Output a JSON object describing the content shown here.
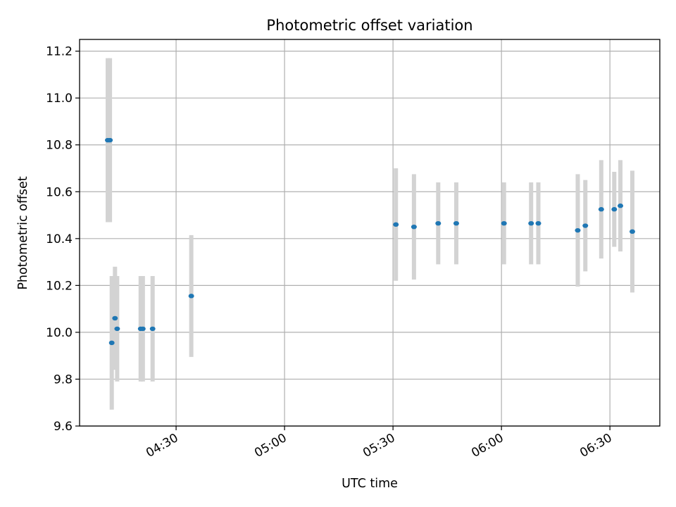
{
  "chart_data": {
    "type": "scatter",
    "title": "Photometric offset variation",
    "xlabel": "UTC time",
    "ylabel": "Photometric offset",
    "ylim": [
      9.6,
      11.25
    ],
    "xlim_minutes": [
      243.3,
      403.8
    ],
    "y_ticks": [
      9.6,
      9.8,
      10.0,
      10.2,
      10.4,
      10.6,
      10.8,
      11.0,
      11.2
    ],
    "y_tick_labels": [
      "9.6",
      "9.8",
      "10.0",
      "10.2",
      "10.4",
      "10.6",
      "10.8",
      "11.0",
      "11.2"
    ],
    "x_ticks_minutes": [
      270,
      300,
      330,
      360,
      390
    ],
    "x_tick_labels": [
      "04:30",
      "05:00",
      "05:30",
      "06:00",
      "06:30"
    ],
    "grid": true,
    "marker_color": "#1f77b4",
    "errorbar_color": "#d3d3d3",
    "series": [
      {
        "name": "Photometric offset",
        "points": [
          {
            "t": 251.1,
            "y": 10.82,
            "err": 0.35
          },
          {
            "t": 251.7,
            "y": 10.82,
            "err": 0.35
          },
          {
            "t": 252.2,
            "y": 9.955,
            "err": 0.285
          },
          {
            "t": 253.1,
            "y": 10.06,
            "err": 0.22
          },
          {
            "t": 253.7,
            "y": 10.015,
            "err": 0.225
          },
          {
            "t": 260.2,
            "y": 10.015,
            "err": 0.225
          },
          {
            "t": 260.8,
            "y": 10.015,
            "err": 0.225
          },
          {
            "t": 263.5,
            "y": 10.015,
            "err": 0.225
          },
          {
            "t": 274.2,
            "y": 10.155,
            "err": 0.26
          },
          {
            "t": 330.8,
            "y": 10.46,
            "err": 0.24
          },
          {
            "t": 335.8,
            "y": 10.45,
            "err": 0.225
          },
          {
            "t": 342.5,
            "y": 10.465,
            "err": 0.175
          },
          {
            "t": 347.5,
            "y": 10.465,
            "err": 0.175
          },
          {
            "t": 360.7,
            "y": 10.465,
            "err": 0.175
          },
          {
            "t": 368.2,
            "y": 10.465,
            "err": 0.175
          },
          {
            "t": 370.2,
            "y": 10.465,
            "err": 0.175
          },
          {
            "t": 381.1,
            "y": 10.435,
            "err": 0.24
          },
          {
            "t": 383.2,
            "y": 10.455,
            "err": 0.195
          },
          {
            "t": 387.6,
            "y": 10.525,
            "err": 0.21
          },
          {
            "t": 391.2,
            "y": 10.525,
            "err": 0.16
          },
          {
            "t": 392.9,
            "y": 10.54,
            "err": 0.195
          },
          {
            "t": 396.2,
            "y": 10.43,
            "err": 0.26
          }
        ]
      }
    ]
  }
}
